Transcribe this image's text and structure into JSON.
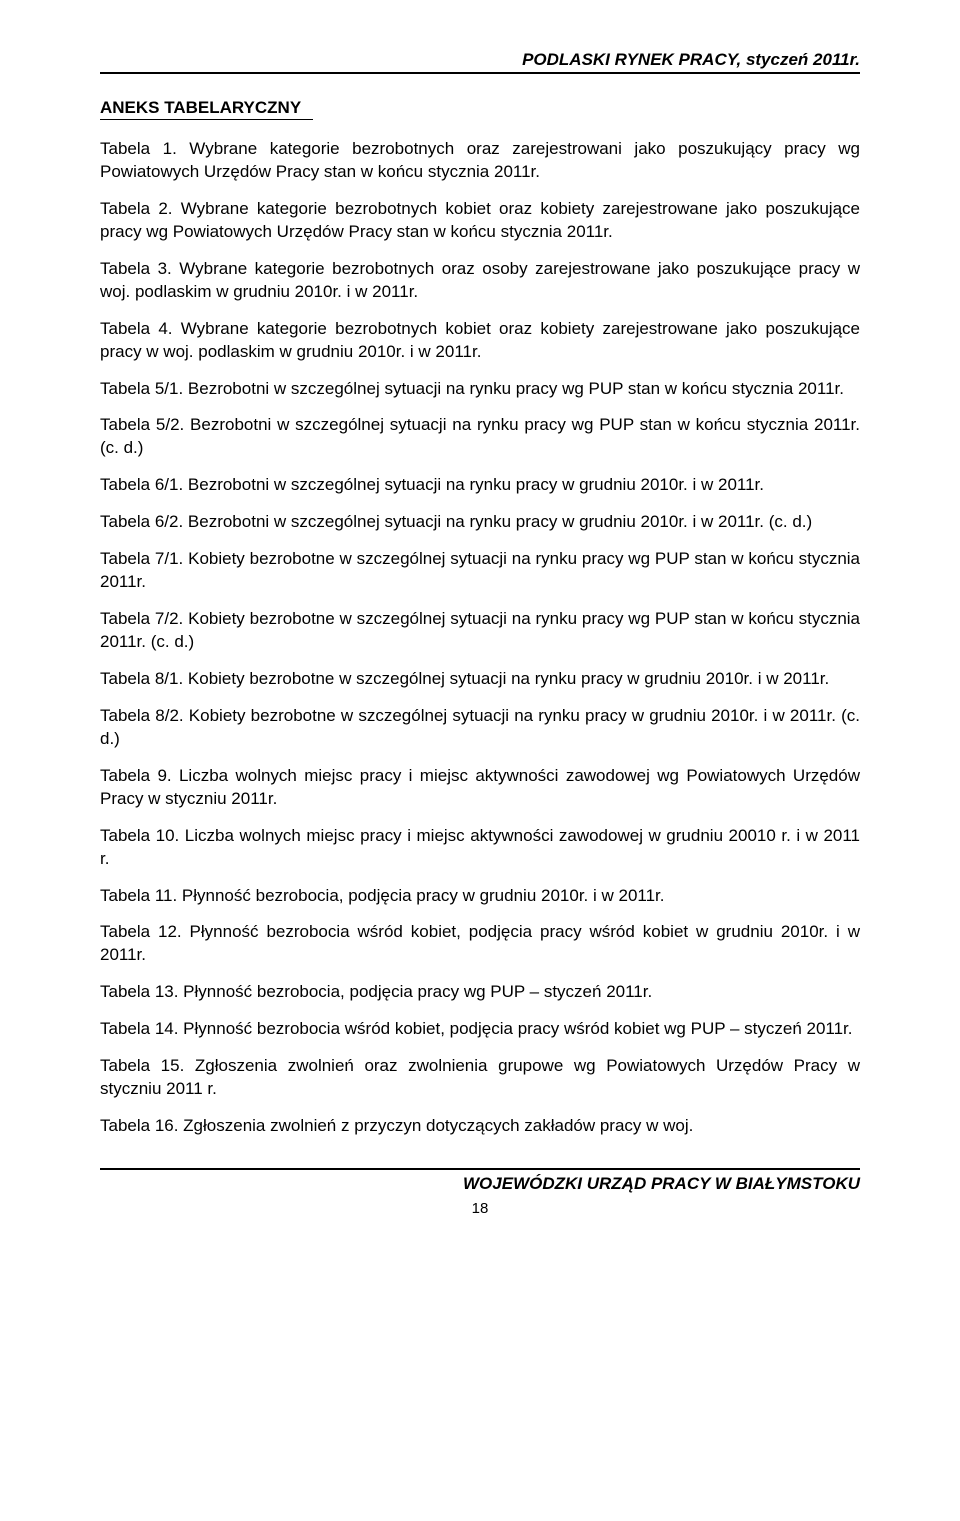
{
  "header": "PODLASKI RYNEK PRACY, styczeń 2011r.",
  "section_title": "ANEKS TABELARYCZNY",
  "entries": [
    "Tabela 1. Wybrane kategorie bezrobotnych oraz zarejestrowani jako poszukujący pracy wg Powiatowych Urzędów Pracy stan w końcu stycznia 2011r.",
    "Tabela 2. Wybrane kategorie bezrobotnych kobiet oraz kobiety zarejestrowane jako poszukujące pracy wg Powiatowych Urzędów Pracy stan w końcu stycznia 2011r.",
    "Tabela 3. Wybrane kategorie bezrobotnych oraz osoby zarejestrowane jako poszukujące pracy w woj. podlaskim w grudniu 2010r. i w 2011r.",
    "Tabela 4. Wybrane kategorie bezrobotnych kobiet oraz kobiety zarejestrowane jako poszukujące pracy w woj. podlaskim w grudniu 2010r. i w 2011r.",
    "Tabela 5/1. Bezrobotni w szczególnej sytuacji na rynku pracy wg PUP stan w końcu stycznia 2011r.",
    "Tabela 5/2. Bezrobotni w szczególnej sytuacji na rynku pracy wg PUP stan w końcu stycznia 2011r. (c. d.)",
    "Tabela 6/1. Bezrobotni w szczególnej sytuacji na rynku pracy w grudniu 2010r. i w 2011r.",
    "Tabela 6/2. Bezrobotni w szczególnej sytuacji na rynku pracy w grudniu 2010r. i w 2011r. (c. d.)",
    "Tabela 7/1. Kobiety bezrobotne w szczególnej sytuacji na rynku pracy wg PUP stan w końcu stycznia 2011r.",
    "Tabela 7/2. Kobiety bezrobotne w szczególnej sytuacji na rynku pracy wg PUP stan w końcu stycznia 2011r. (c. d.)",
    "Tabela 8/1. Kobiety bezrobotne w szczególnej sytuacji na rynku pracy w grudniu 2010r. i w 2011r.",
    "Tabela 8/2. Kobiety bezrobotne w szczególnej sytuacji na rynku pracy w grudniu 2010r. i w 2011r. (c. d.)",
    "Tabela 9. Liczba wolnych miejsc pracy i miejsc aktywności zawodowej wg Powiatowych Urzędów Pracy w styczniu 2011r.",
    "Tabela 10. Liczba wolnych miejsc pracy i miejsc aktywności zawodowej w grudniu 20010 r. i w 2011 r.",
    "Tabela 11. Płynność bezrobocia, podjęcia pracy w grudniu 2010r. i w 2011r.",
    "Tabela 12. Płynność bezrobocia wśród kobiet, podjęcia pracy wśród kobiet w grudniu 2010r. i w 2011r.",
    "Tabela 13. Płynność bezrobocia, podjęcia pracy wg PUP – styczeń 2011r.",
    "Tabela 14. Płynność bezrobocia wśród kobiet, podjęcia pracy wśród kobiet wg PUP – styczeń 2011r.",
    "Tabela 15. Zgłoszenia zwolnień oraz zwolnienia grupowe wg Powiatowych Urzędów Pracy w styczniu 2011 r.",
    "Tabela 16. Zgłoszenia zwolnień z przyczyn dotyczących zakładów pracy w woj."
  ],
  "footer": "WOJEWÓDZKI URZĄD PRACY W BIAŁYMSTOKU",
  "page_number": "18"
}
